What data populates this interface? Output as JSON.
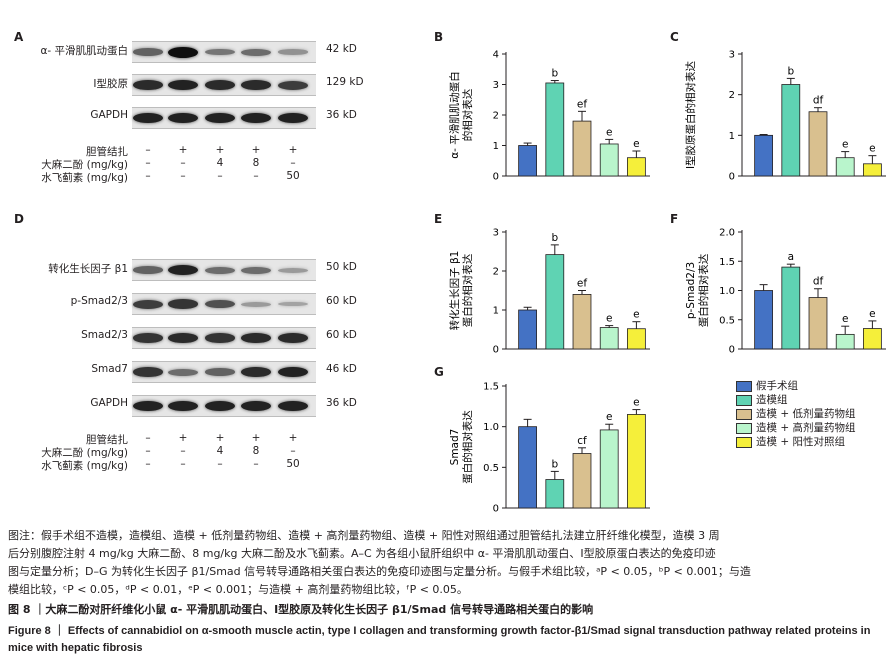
{
  "panels": {
    "A": "A",
    "B": "B",
    "C": "C",
    "D": "D",
    "E": "E",
    "F": "F",
    "G": "G"
  },
  "blots_top": [
    {
      "label": "α- 平滑肌肌动蛋白",
      "kd": "42 kD",
      "intensity": [
        0.55,
        1.0,
        0.45,
        0.5,
        0.3
      ]
    },
    {
      "label": "Ⅰ型胶原",
      "kd": "129 kD",
      "intensity": [
        0.85,
        0.9,
        0.85,
        0.85,
        0.75
      ]
    },
    {
      "label": "GAPDH",
      "kd": "36 kD",
      "intensity": [
        0.9,
        0.9,
        0.9,
        0.9,
        0.9
      ]
    }
  ],
  "blots_bottom": [
    {
      "label": "转化生长因子 β1",
      "kd": "50 kD",
      "intensity": [
        0.55,
        0.9,
        0.5,
        0.5,
        0.25
      ]
    },
    {
      "label": "p-Smad2/3",
      "kd": "60 kD",
      "intensity": [
        0.75,
        0.8,
        0.65,
        0.25,
        0.2
      ]
    },
    {
      "label": "Smad2/3",
      "kd": "60 kD",
      "intensity": [
        0.8,
        0.85,
        0.8,
        0.85,
        0.85
      ]
    },
    {
      "label": "Smad7",
      "kd": "46 kD",
      "intensity": [
        0.8,
        0.5,
        0.55,
        0.85,
        0.9
      ]
    },
    {
      "label": "GAPDH",
      "kd": "36 kD",
      "intensity": [
        0.9,
        0.9,
        0.9,
        0.9,
        0.9
      ]
    }
  ],
  "treatments": [
    {
      "label": "胆管结扎",
      "values": [
        "–",
        "+",
        "+",
        "+",
        "+"
      ]
    },
    {
      "label": "大麻二酚 (mg/kg)",
      "values": [
        "–",
        "–",
        "4",
        "8",
        "–"
      ]
    },
    {
      "label": "水飞蓟素 (mg/kg)",
      "values": [
        "–",
        "–",
        "–",
        "–",
        "50"
      ]
    }
  ],
  "colors": [
    "#4472c4",
    "#5fd3b3",
    "#d9c08f",
    "#b9f5cc",
    "#f5ef3a"
  ],
  "legend": [
    "假手术组",
    "造模组",
    "造模 + 低剂量药物组",
    "造模 + 高剂量药物组",
    "造模 + 阳性对照组"
  ],
  "chart_data": [
    {
      "panel": "B",
      "type": "bar",
      "ylabel": "α- 平滑肌肌动蛋白|的相对表达",
      "ylim": [
        0,
        4
      ],
      "yticks": [
        0,
        1,
        2,
        3,
        4
      ],
      "values": [
        1.0,
        3.05,
        1.8,
        1.05,
        0.6
      ],
      "errors": [
        0.08,
        0.08,
        0.32,
        0.15,
        0.22
      ],
      "labels": [
        "",
        "b",
        "ef",
        "e",
        "e"
      ]
    },
    {
      "panel": "C",
      "type": "bar",
      "ylabel": "Ⅰ型胶原蛋白的相对表达",
      "ylim": [
        0,
        3
      ],
      "yticks": [
        0,
        1,
        2,
        3
      ],
      "values": [
        1.0,
        2.25,
        1.58,
        0.45,
        0.3
      ],
      "errors": [
        0.02,
        0.15,
        0.1,
        0.15,
        0.2
      ],
      "labels": [
        "",
        "b",
        "df",
        "e",
        "e"
      ]
    },
    {
      "panel": "E",
      "type": "bar",
      "ylabel": "转化生长因子 β1|蛋白的相对表达",
      "ylim": [
        0,
        3
      ],
      "yticks": [
        0,
        1,
        2,
        3
      ],
      "values": [
        1.0,
        2.42,
        1.4,
        0.55,
        0.52
      ],
      "errors": [
        0.07,
        0.25,
        0.1,
        0.05,
        0.18
      ],
      "labels": [
        "",
        "b",
        "ef",
        "e",
        "e"
      ]
    },
    {
      "panel": "F",
      "type": "bar",
      "ylabel": "p-Smad2/3|蛋白的相对表达",
      "ylim": [
        0,
        2.0
      ],
      "yticks": [
        0,
        0.5,
        1.0,
        1.5,
        2.0
      ],
      "tickLabels": [
        "0",
        "0.5",
        "1.0",
        "1.5",
        "2.0"
      ],
      "values": [
        1.0,
        1.4,
        0.88,
        0.25,
        0.35
      ],
      "errors": [
        0.1,
        0.05,
        0.15,
        0.14,
        0.13
      ],
      "labels": [
        "",
        "a",
        "df",
        "e",
        "e"
      ]
    },
    {
      "panel": "G",
      "type": "bar",
      "ylabel": "Smad7|蛋白的相对表达",
      "ylim": [
        0,
        1.5
      ],
      "yticks": [
        0,
        0.5,
        1.0,
        1.5
      ],
      "tickLabels": [
        "0",
        "0.5",
        "1.0",
        "1.5"
      ],
      "values": [
        1.0,
        0.35,
        0.67,
        0.96,
        1.15
      ],
      "errors": [
        0.09,
        0.1,
        0.07,
        0.07,
        0.06
      ],
      "labels": [
        "",
        "b",
        "cf",
        "e",
        "e"
      ]
    }
  ],
  "caption": {
    "line1": "图注：假手术组不造模，造模组、造模 + 低剂量药物组、造模 + 高剂量药物组、造模 + 阳性对照组通过胆管结扎法建立肝纤维化模型，造模 3 周",
    "line2": "后分别腹腔注射 4 mg/kg 大麻二酚、8 mg/kg 大麻二酚及水飞蓟素。A–C 为各组小鼠肝组织中 α- 平滑肌肌动蛋白、Ⅰ型胶原蛋白表达的免疫印迹",
    "line3": "图与定量分析；D–G 为转化生长因子 β1/Smad 信号转导通路相关蛋白表达的免疫印迹图与定量分析。与假手术组比较，ᵃP < 0.05，ᵇP < 0.001；与造",
    "line4": "模组比较，ᶜP < 0.05，ᵈP < 0.01，ᵉP < 0.001；与造模 + 高剂量药物组比较，ᶠP < 0.05。"
  },
  "title_cn": "图 8 ｜大麻二酚对肝纤维化小鼠 α- 平滑肌肌动蛋白、Ⅰ型胶原及转化生长因子 β1/Smad 信号转导通路相关蛋白的影响",
  "title_en": "Figure 8 ｜ Effects of cannabidiol on α-smooth muscle actin, type I collagen and transforming growth factor-β1/Smad signal transduction pathway related proteins in mice with hepatic fibrosis"
}
